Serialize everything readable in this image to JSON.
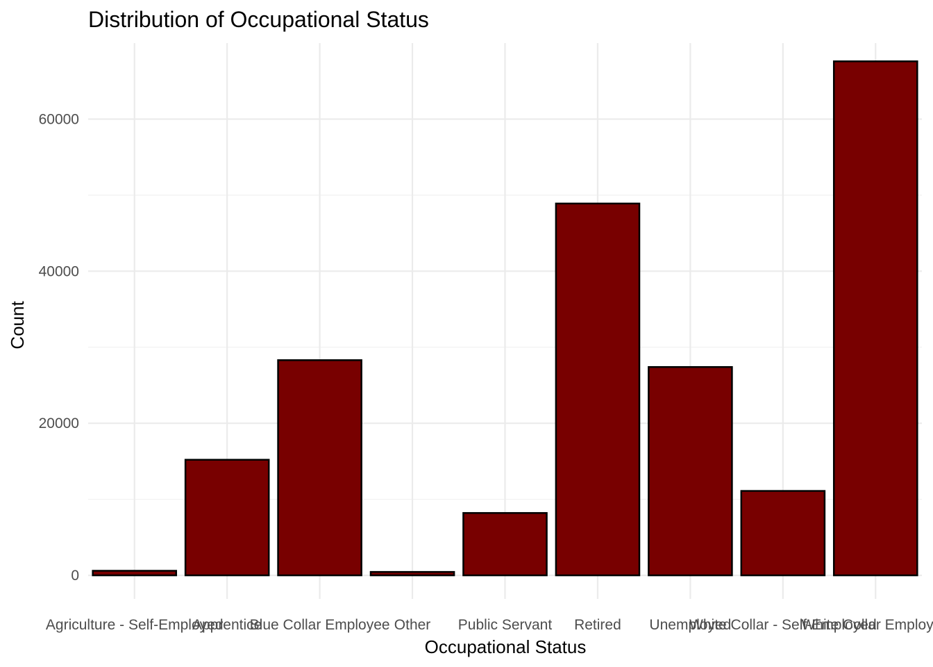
{
  "chart_data": {
    "type": "bar",
    "title": "Distribution of Occupational Status",
    "xlabel": "Occupational Status",
    "ylabel": "Count",
    "categories": [
      "Agriculture - Self-Employed",
      "Apprentice",
      "Blue Collar Employee",
      "Other",
      "Public Servant",
      "Retired",
      "Unemployed",
      "White Collar - Self-Employed",
      "White Collar Employee"
    ],
    "values": [
      600,
      15200,
      28300,
      450,
      8200,
      48900,
      27400,
      11100,
      67600
    ],
    "ylim": [
      -3100,
      70000
    ],
    "yticks": [
      0,
      20000,
      40000,
      60000
    ],
    "grid": true,
    "legend": "none",
    "bar_color": "#780000",
    "bar_border": "#000000"
  }
}
